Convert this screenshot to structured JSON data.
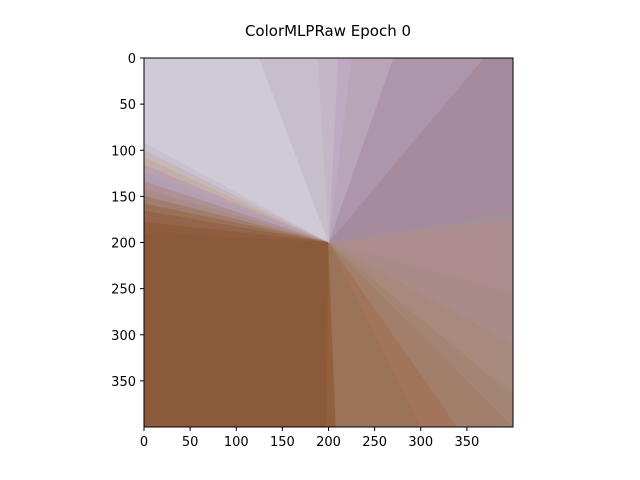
{
  "chart_data": {
    "type": "heatmap",
    "title": "ColorMLPRaw Epoch 0",
    "xlabel": "",
    "ylabel": "",
    "xlim": [
      0,
      400
    ],
    "ylim": [
      400,
      0
    ],
    "x_ticks": [
      0,
      50,
      100,
      150,
      200,
      250,
      300,
      350
    ],
    "y_ticks": [
      0,
      50,
      100,
      150,
      200,
      250,
      300,
      350
    ],
    "grid": false,
    "center": [
      200,
      200
    ],
    "background_color": "#d0cad6",
    "wedges": [
      {
        "from": [
          125,
          0
        ],
        "to": [
          0,
          92
        ],
        "color": "#d0cad6"
      },
      {
        "from": [
          0,
          92
        ],
        "to": [
          0,
          100
        ],
        "color": "#c9c1cd"
      },
      {
        "from": [
          0,
          100
        ],
        "to": [
          0,
          108
        ],
        "color": "#c6b7bf"
      },
      {
        "from": [
          0,
          108
        ],
        "to": [
          0,
          116
        ],
        "color": "#c2b0a6"
      },
      {
        "from": [
          0,
          116
        ],
        "to": [
          0,
          124
        ],
        "color": "#b9a2ae"
      },
      {
        "from": [
          0,
          124
        ],
        "to": [
          0,
          134
        ],
        "color": "#b39fb4"
      },
      {
        "from": [
          0,
          134
        ],
        "to": [
          0,
          142
        ],
        "color": "#b09092"
      },
      {
        "from": [
          0,
          142
        ],
        "to": [
          0,
          150
        ],
        "color": "#a88c88"
      },
      {
        "from": [
          0,
          150
        ],
        "to": [
          0,
          158
        ],
        "color": "#a07d6e"
      },
      {
        "from": [
          0,
          158
        ],
        "to": [
          0,
          166
        ],
        "color": "#997157"
      },
      {
        "from": [
          0,
          166
        ],
        "to": [
          0,
          178
        ],
        "color": "#94654a"
      },
      {
        "from": [
          0,
          178
        ],
        "to": [
          0,
          190
        ],
        "color": "#8f5c3e"
      },
      {
        "from": [
          0,
          190
        ],
        "to": [
          0,
          400
        ],
        "color": "#8b5a3a"
      },
      {
        "from": [
          0,
          400
        ],
        "to": [
          198,
          400
        ],
        "color": "#8b5a3a"
      },
      {
        "from": [
          198,
          400
        ],
        "to": [
          208,
          400
        ],
        "color": "#92603f"
      },
      {
        "from": [
          208,
          400
        ],
        "to": [
          300,
          400
        ],
        "color": "#9b7358"
      },
      {
        "from": [
          300,
          400
        ],
        "to": [
          340,
          400
        ],
        "color": "#a2745a"
      },
      {
        "from": [
          340,
          400
        ],
        "to": [
          400,
          400
        ],
        "color": "#a27f6a"
      },
      {
        "from": [
          400,
          400
        ],
        "to": [
          400,
          365
        ],
        "color": "#a38573"
      },
      {
        "from": [
          400,
          365
        ],
        "to": [
          400,
          310
        ],
        "color": "#a78a7d"
      },
      {
        "from": [
          400,
          310
        ],
        "to": [
          400,
          255
        ],
        "color": "#a98b89"
      },
      {
        "from": [
          400,
          255
        ],
        "to": [
          400,
          175
        ],
        "color": "#ac8c8e"
      },
      {
        "from": [
          400,
          175
        ],
        "to": [
          400,
          168
        ],
        "color": "#a39096"
      },
      {
        "from": [
          400,
          168
        ],
        "to": [
          400,
          0
        ],
        "color": "#a68b9e"
      },
      {
        "from": [
          400,
          0
        ],
        "to": [
          368,
          0
        ],
        "color": "#a68b9e"
      },
      {
        "from": [
          368,
          0
        ],
        "to": [
          270,
          0
        ],
        "color": "#ad95ac"
      },
      {
        "from": [
          270,
          0
        ],
        "to": [
          225,
          0
        ],
        "color": "#b8a5b8"
      },
      {
        "from": [
          225,
          0
        ],
        "to": [
          210,
          0
        ],
        "color": "#bfabc1"
      },
      {
        "from": [
          210,
          0
        ],
        "to": [
          188,
          0
        ],
        "color": "#c4b6c6"
      },
      {
        "from": [
          188,
          0
        ],
        "to": [
          125,
          0
        ],
        "color": "#c6bfcb"
      }
    ]
  }
}
